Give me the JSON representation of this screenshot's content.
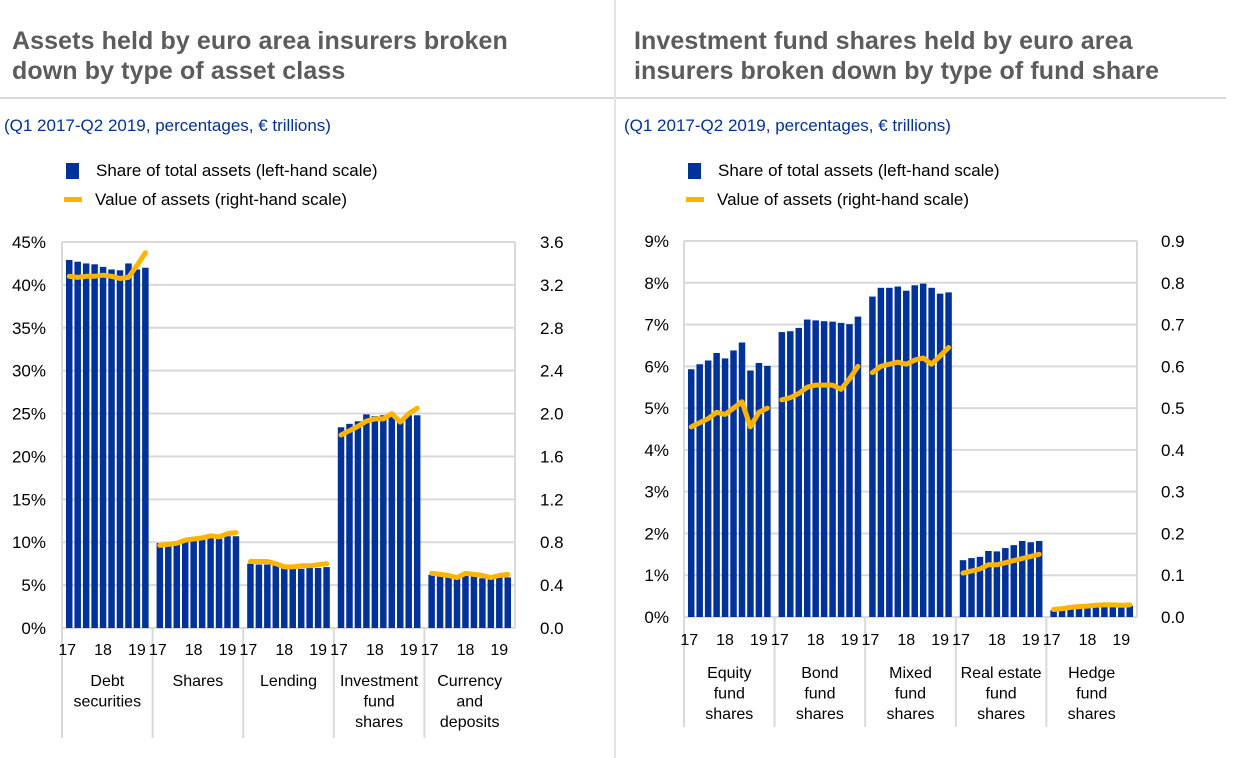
{
  "chart_data": [
    {
      "type": "bar",
      "title": "Assets held by euro area insurers broken down by type of asset class",
      "subtitle": "(Q1 2017-Q2 2019, percentages, € trillions)",
      "legend": {
        "placement": "top-left",
        "items": [
          {
            "name": "Share of total assets (left-hand scale)",
            "kind": "bar",
            "color": "#003299"
          },
          {
            "name": "Value of assets (right-hand scale)",
            "kind": "line",
            "color": "#ffb400"
          }
        ]
      },
      "x_periods": [
        "Q1 2017",
        "Q2 2017",
        "Q3 2017",
        "Q4 2017",
        "Q1 2018",
        "Q2 2018",
        "Q3 2018",
        "Q4 2018",
        "Q1 2019",
        "Q2 2019"
      ],
      "x_tick_labels": [
        "17",
        "18",
        "19"
      ],
      "categories": [
        "Debt securities",
        "Shares",
        "Lending",
        "Investment fund shares",
        "Currency and deposits"
      ],
      "category_label_lines": [
        [
          "Debt",
          "securities"
        ],
        [
          "Shares"
        ],
        [
          "Lending"
        ],
        [
          "Investment",
          "fund",
          "shares"
        ],
        [
          "Currency",
          "and",
          "deposits"
        ]
      ],
      "y_left": {
        "min": 0,
        "max": 45,
        "step": 5,
        "ticks": [
          "0%",
          "5%",
          "10%",
          "15%",
          "20%",
          "25%",
          "30%",
          "35%",
          "40%",
          "45%"
        ]
      },
      "y_right": {
        "min": 0,
        "max": 3.6,
        "step": 0.4,
        "ticks": [
          "0.0",
          "0.4",
          "0.8",
          "1.2",
          "1.6",
          "2.0",
          "2.4",
          "2.8",
          "3.2",
          "3.6"
        ]
      },
      "grid": true,
      "series": [
        {
          "name": "Share of total assets (left-hand scale)",
          "axis": "left",
          "values": [
            [
              42.9,
              42.7,
              42.5,
              42.4,
              42.1,
              41.8,
              41.7,
              42.5,
              41.8,
              42.0
            ],
            [
              9.9,
              9.9,
              10.0,
              10.2,
              10.3,
              10.4,
              10.6,
              10.4,
              10.7,
              10.7
            ],
            [
              7.5,
              7.4,
              7.4,
              7.3,
              7.0,
              6.9,
              6.9,
              7.0,
              7.0,
              7.1
            ],
            [
              23.4,
              23.8,
              24.1,
              24.9,
              24.7,
              24.8,
              25.1,
              24.4,
              24.8,
              24.8
            ],
            [
              6.2,
              6.0,
              6.0,
              5.7,
              6.1,
              6.0,
              5.8,
              5.7,
              5.9,
              5.9
            ]
          ]
        },
        {
          "name": "Value of assets (right-hand scale)",
          "axis": "right",
          "values": [
            [
              3.28,
              3.27,
              3.28,
              3.28,
              3.29,
              3.28,
              3.26,
              3.27,
              3.38,
              3.5
            ],
            [
              0.77,
              0.78,
              0.79,
              0.82,
              0.83,
              0.84,
              0.86,
              0.85,
              0.88,
              0.89
            ],
            [
              0.62,
              0.62,
              0.62,
              0.6,
              0.57,
              0.57,
              0.58,
              0.58,
              0.59,
              0.6
            ],
            [
              1.8,
              1.84,
              1.88,
              1.93,
              1.95,
              1.95,
              2.0,
              1.92,
              2.0,
              2.05
            ],
            [
              0.51,
              0.5,
              0.49,
              0.47,
              0.51,
              0.5,
              0.49,
              0.47,
              0.49,
              0.5
            ]
          ]
        }
      ]
    },
    {
      "type": "bar",
      "title": "Investment fund shares held by euro area insurers broken down by type of fund share",
      "subtitle": "(Q1 2017-Q2 2019, percentages, € trillions)",
      "legend": {
        "placement": "top-left",
        "items": [
          {
            "name": "Share of total assets (left-hand scale)",
            "kind": "bar",
            "color": "#003299"
          },
          {
            "name": "Value of assets (right-hand scale)",
            "kind": "line",
            "color": "#ffb400"
          }
        ]
      },
      "x_periods": [
        "Q1 2017",
        "Q2 2017",
        "Q3 2017",
        "Q4 2017",
        "Q1 2018",
        "Q2 2018",
        "Q3 2018",
        "Q4 2018",
        "Q1 2019",
        "Q2 2019"
      ],
      "x_tick_labels": [
        "17",
        "18",
        "19"
      ],
      "categories": [
        "Equity fund shares",
        "Bond fund shares",
        "Mixed fund shares",
        "Real estate fund shares",
        "Hedge fund shares"
      ],
      "category_label_lines": [
        [
          "Equity",
          "fund",
          "shares"
        ],
        [
          "Bond",
          "fund",
          "shares"
        ],
        [
          "Mixed",
          "fund",
          "shares"
        ],
        [
          "Real estate",
          "fund",
          "shares"
        ],
        [
          "Hedge",
          "fund",
          "shares"
        ]
      ],
      "y_left": {
        "min": 0,
        "max": 9,
        "step": 1,
        "ticks": [
          "0%",
          "1%",
          "2%",
          "3%",
          "4%",
          "5%",
          "6%",
          "7%",
          "8%",
          "9%"
        ]
      },
      "y_right": {
        "min": 0,
        "max": 0.9,
        "step": 0.1,
        "ticks": [
          "0.0",
          "0.1",
          "0.2",
          "0.3",
          "0.4",
          "0.5",
          "0.6",
          "0.7",
          "0.8",
          "0.9"
        ]
      },
      "grid": true,
      "series": [
        {
          "name": "Share of total assets (left-hand scale)",
          "axis": "left",
          "values": [
            [
              5.93,
              6.05,
              6.14,
              6.32,
              6.19,
              6.38,
              6.57,
              5.9,
              6.08,
              6.01
            ],
            [
              6.82,
              6.84,
              6.92,
              7.12,
              7.1,
              7.08,
              7.07,
              7.04,
              7.01,
              7.19
            ],
            [
              7.67,
              7.88,
              7.88,
              7.91,
              7.81,
              7.94,
              7.98,
              7.88,
              7.74,
              7.77
            ],
            [
              1.36,
              1.41,
              1.44,
              1.58,
              1.57,
              1.65,
              1.72,
              1.82,
              1.79,
              1.82
            ],
            [
              0.16,
              0.19,
              0.2,
              0.23,
              0.25,
              0.26,
              0.27,
              0.27,
              0.25,
              0.27
            ]
          ]
        },
        {
          "name": "Value of assets (right-hand scale)",
          "axis": "right",
          "values": [
            [
              0.455,
              0.465,
              0.475,
              0.49,
              0.485,
              0.5,
              0.515,
              0.455,
              0.49,
              0.5
            ],
            [
              0.52,
              0.525,
              0.535,
              0.55,
              0.555,
              0.555,
              0.555,
              0.545,
              0.57,
              0.6
            ],
            [
              0.585,
              0.6,
              0.605,
              0.61,
              0.605,
              0.615,
              0.62,
              0.605,
              0.625,
              0.645
            ],
            [
              0.105,
              0.11,
              0.115,
              0.125,
              0.125,
              0.13,
              0.135,
              0.14,
              0.145,
              0.15
            ],
            [
              0.018,
              0.02,
              0.023,
              0.025,
              0.026,
              0.028,
              0.029,
              0.029,
              0.028,
              0.029
            ]
          ]
        }
      ]
    }
  ]
}
